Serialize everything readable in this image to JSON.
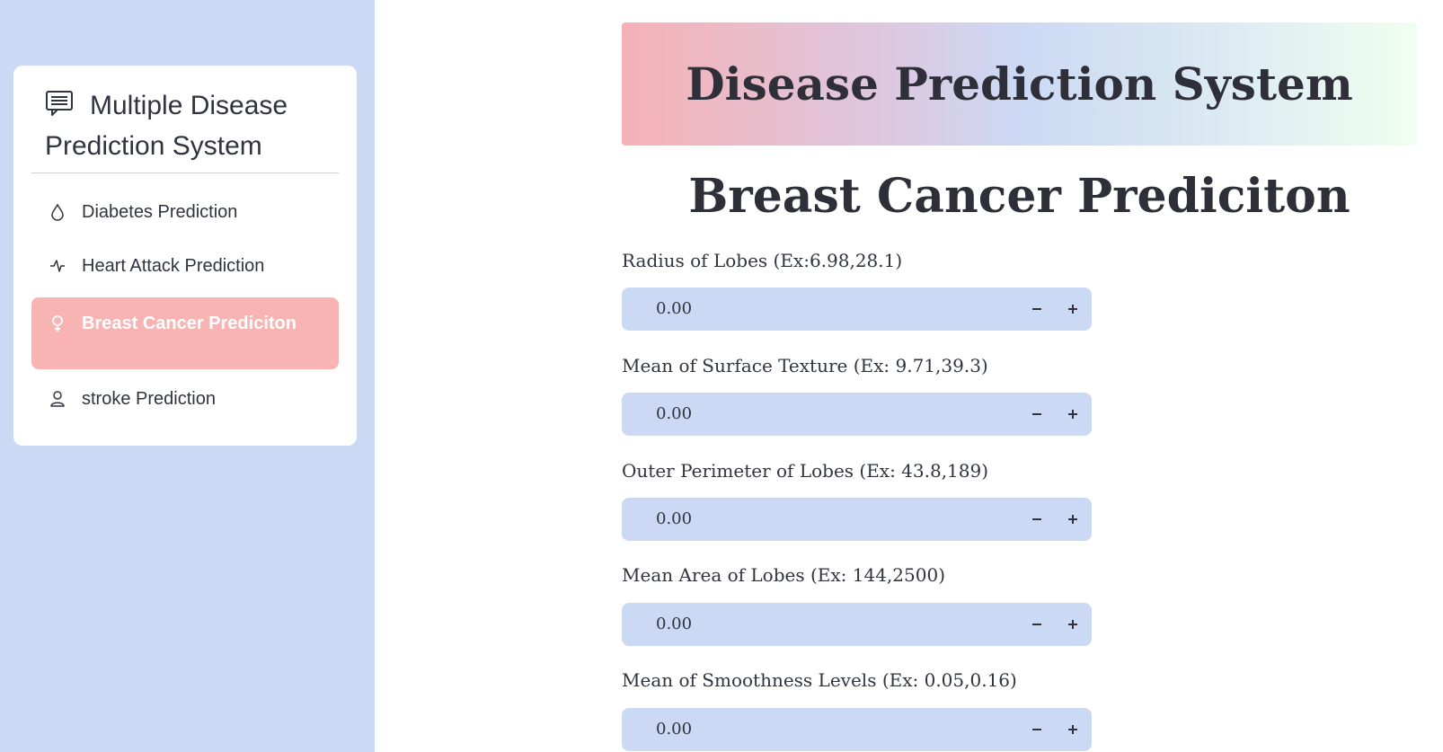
{
  "sidebar": {
    "title": "Multiple Disease Prediction System",
    "items": [
      {
        "label": "Diabetes Prediction",
        "icon": "droplet-icon",
        "active": false
      },
      {
        "label": "Heart Attack Prediction",
        "icon": "activity-icon",
        "active": false
      },
      {
        "label": "Breast Cancer Prediciton",
        "icon": "female-icon",
        "active": true
      },
      {
        "label": "stroke Prediction",
        "icon": "person-icon",
        "active": false
      }
    ]
  },
  "main": {
    "title": "Disease Prediction System",
    "subtitle": "Breast Cancer Prediciton",
    "fields": [
      {
        "label": "Radius of Lobes (Ex:6.98,28.1)",
        "value": "0.00"
      },
      {
        "label": "Mean of Surface Texture (Ex: 9.71,39.3)",
        "value": "0.00"
      },
      {
        "label": "Outer Perimeter of Lobes (Ex: 43.8,189)",
        "value": "0.00"
      },
      {
        "label": "Mean Area of Lobes (Ex: 144,2500)",
        "value": "0.00"
      },
      {
        "label": "Mean of Smoothness Levels (Ex: 0.05,0.16)",
        "value": "0.00"
      }
    ]
  },
  "colors": {
    "sidebar_bg": "#ccd9f4",
    "active_item_bg": "#f8b3b3",
    "input_bg": "#ccd9f4",
    "title_gradient_start": "#f5b1b5",
    "title_gradient_end": "#f0fff0"
  }
}
